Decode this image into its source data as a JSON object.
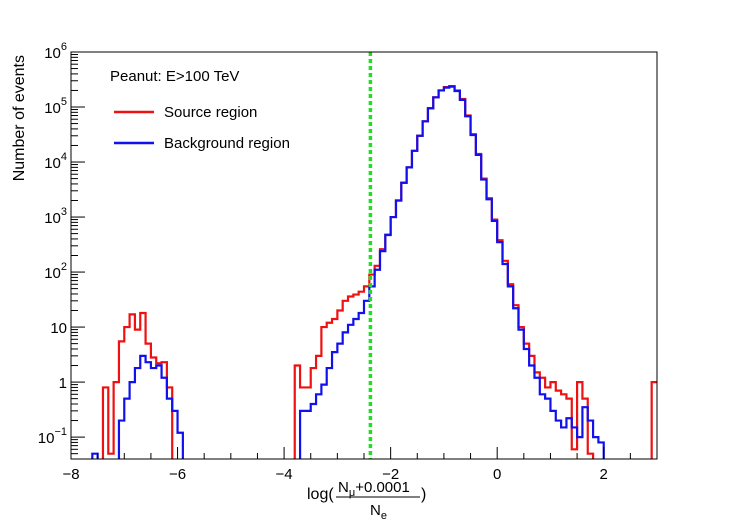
{
  "chart_data": {
    "type": "step",
    "ylabel": "Number of events",
    "xlabel": {
      "prefix": "log(",
      "numerator_main": "N",
      "numerator_sub": "μ",
      "numerator_rest": "+0.0001",
      "denominator_main": "N",
      "denominator_sub": "e",
      "suffix": ")"
    },
    "xlim": [
      -8,
      3
    ],
    "ylim": [
      0.04,
      1000000
    ],
    "yscale": "log",
    "x_ticks": [
      {
        "v": -8,
        "label": "−8"
      },
      {
        "v": -6,
        "label": "−6"
      },
      {
        "v": -4,
        "label": "−4"
      },
      {
        "v": -2,
        "label": "−2"
      },
      {
        "v": 0,
        "label": "0"
      },
      {
        "v": 2,
        "label": "2"
      }
    ],
    "y_ticks": [
      {
        "v": 0.1,
        "base": "10",
        "exp": "−1"
      },
      {
        "v": 1,
        "base": "1",
        "exp": ""
      },
      {
        "v": 10,
        "base": "10",
        "exp": ""
      },
      {
        "v": 100,
        "base": "10",
        "exp": "2"
      },
      {
        "v": 1000,
        "base": "10",
        "exp": "3"
      },
      {
        "v": 10000,
        "base": "10",
        "exp": "4"
      },
      {
        "v": 100000,
        "base": "10",
        "exp": "5"
      },
      {
        "v": 1000000,
        "base": "10",
        "exp": "6"
      }
    ],
    "legend": {
      "title": "Peanut: E>100 TeV",
      "placement": "top-left"
    },
    "cut_line": {
      "x": -2.38,
      "color": "#22dd22",
      "style": "dotted"
    },
    "series": [
      {
        "name": "Source region",
        "color": "#ee1111",
        "bins": [
          [
            -7.4,
            -7.3,
            0.8
          ],
          [
            -7.3,
            -7.2,
            0.05
          ],
          [
            -7.2,
            -7.1,
            1.0
          ],
          [
            -7.1,
            -7.0,
            5.5
          ],
          [
            -7.0,
            -6.9,
            10
          ],
          [
            -6.9,
            -6.8,
            17
          ],
          [
            -6.8,
            -6.7,
            9
          ],
          [
            -6.7,
            -6.6,
            18
          ],
          [
            -6.6,
            -6.5,
            5
          ],
          [
            -6.5,
            -6.4,
            2.8
          ],
          [
            -6.4,
            -6.3,
            2.2
          ],
          [
            -6.3,
            -6.2,
            2.3
          ],
          [
            -6.2,
            -6.1,
            0.8
          ],
          [
            -3.8,
            -3.7,
            2.0
          ],
          [
            -3.7,
            -3.6,
            0.8
          ],
          [
            -3.6,
            -3.5,
            0.8
          ],
          [
            -3.5,
            -3.4,
            1.8
          ],
          [
            -3.4,
            -3.3,
            3.0
          ],
          [
            -3.3,
            -3.2,
            10
          ],
          [
            -3.2,
            -3.1,
            12
          ],
          [
            -3.1,
            -3.0,
            14
          ],
          [
            -3.0,
            -2.9,
            20
          ],
          [
            -2.9,
            -2.8,
            30
          ],
          [
            -2.8,
            -2.7,
            36
          ],
          [
            -2.7,
            -2.6,
            39
          ],
          [
            -2.6,
            -2.5,
            44
          ],
          [
            -2.5,
            -2.4,
            55
          ],
          [
            -2.4,
            -2.3,
            90
          ],
          [
            -2.3,
            -2.2,
            130
          ],
          [
            -2.2,
            -2.1,
            260
          ],
          [
            -2.1,
            -2.0,
            480
          ],
          [
            -2.0,
            -1.9,
            1000
          ],
          [
            -1.9,
            -1.8,
            2000
          ],
          [
            -1.8,
            -1.7,
            4200
          ],
          [
            -1.7,
            -1.6,
            8000
          ],
          [
            -1.6,
            -1.5,
            16000
          ],
          [
            -1.5,
            -1.4,
            30000
          ],
          [
            -1.4,
            -1.3,
            55000
          ],
          [
            -1.3,
            -1.2,
            95000
          ],
          [
            -1.2,
            -1.1,
            150000
          ],
          [
            -1.1,
            -1.0,
            200000
          ],
          [
            -1.0,
            -0.9,
            230000
          ],
          [
            -0.9,
            -0.8,
            240000
          ],
          [
            -0.8,
            -0.7,
            200000
          ],
          [
            -0.7,
            -0.6,
            140000
          ],
          [
            -0.6,
            -0.5,
            70000
          ],
          [
            -0.5,
            -0.4,
            32000
          ],
          [
            -0.4,
            -0.3,
            14000
          ],
          [
            -0.3,
            -0.2,
            5000
          ],
          [
            -0.2,
            -0.1,
            2200
          ],
          [
            -0.1,
            0.0,
            900
          ],
          [
            0.0,
            0.1,
            380
          ],
          [
            0.1,
            0.2,
            160
          ],
          [
            0.2,
            0.3,
            60
          ],
          [
            0.3,
            0.4,
            25
          ],
          [
            0.4,
            0.5,
            10
          ],
          [
            0.5,
            0.6,
            5
          ],
          [
            0.6,
            0.7,
            3
          ],
          [
            0.7,
            0.8,
            1.5
          ],
          [
            0.8,
            0.9,
            1.2
          ],
          [
            0.9,
            1.0,
            0.8
          ],
          [
            1.0,
            1.1,
            1.0
          ],
          [
            1.1,
            1.2,
            0.7
          ],
          [
            1.2,
            1.3,
            0.6
          ],
          [
            1.3,
            1.4,
            0.5
          ],
          [
            1.4,
            1.5,
            0.06
          ],
          [
            1.5,
            1.6,
            1.0
          ],
          [
            1.6,
            1.7,
            0.5
          ],
          [
            1.7,
            1.8,
            0.05
          ],
          [
            2.9,
            3.0,
            1.0
          ]
        ]
      },
      {
        "name": "Background region",
        "color": "#1111ee",
        "bins": [
          [
            -7.6,
            -7.5,
            0.05
          ],
          [
            -7.1,
            -7.0,
            0.2
          ],
          [
            -7.0,
            -6.9,
            0.5
          ],
          [
            -6.9,
            -6.8,
            1.0
          ],
          [
            -6.8,
            -6.7,
            1.8
          ],
          [
            -6.7,
            -6.6,
            3.0
          ],
          [
            -6.6,
            -6.5,
            2.3
          ],
          [
            -6.5,
            -6.4,
            1.8
          ],
          [
            -6.4,
            -6.3,
            2.0
          ],
          [
            -6.3,
            -6.2,
            1.2
          ],
          [
            -6.2,
            -6.1,
            0.5
          ],
          [
            -6.1,
            -6.0,
            0.3
          ],
          [
            -6.0,
            -5.9,
            0.12
          ],
          [
            -3.7,
            -3.6,
            0.3
          ],
          [
            -3.6,
            -3.5,
            0.3
          ],
          [
            -3.5,
            -3.4,
            0.4
          ],
          [
            -3.4,
            -3.3,
            0.6
          ],
          [
            -3.3,
            -3.2,
            0.9
          ],
          [
            -3.2,
            -3.1,
            1.8
          ],
          [
            -3.1,
            -3.0,
            3.5
          ],
          [
            -3.0,
            -2.9,
            5
          ],
          [
            -2.9,
            -2.8,
            8
          ],
          [
            -2.8,
            -2.7,
            11
          ],
          [
            -2.7,
            -2.6,
            14
          ],
          [
            -2.6,
            -2.5,
            18
          ],
          [
            -2.5,
            -2.4,
            30
          ],
          [
            -2.4,
            -2.3,
            55
          ],
          [
            -2.3,
            -2.2,
            110
          ],
          [
            -2.2,
            -2.1,
            240
          ],
          [
            -2.1,
            -2.0,
            470
          ],
          [
            -2.0,
            -1.9,
            1000
          ],
          [
            -1.9,
            -1.8,
            2000
          ],
          [
            -1.8,
            -1.7,
            4200
          ],
          [
            -1.7,
            -1.6,
            8000
          ],
          [
            -1.6,
            -1.5,
            16000
          ],
          [
            -1.5,
            -1.4,
            30000
          ],
          [
            -1.4,
            -1.3,
            55000
          ],
          [
            -1.3,
            -1.2,
            95000
          ],
          [
            -1.2,
            -1.1,
            150000
          ],
          [
            -1.1,
            -1.0,
            200000
          ],
          [
            -1.0,
            -0.9,
            225000
          ],
          [
            -0.9,
            -0.8,
            235000
          ],
          [
            -0.8,
            -0.7,
            195000
          ],
          [
            -0.7,
            -0.6,
            135000
          ],
          [
            -0.6,
            -0.5,
            68000
          ],
          [
            -0.5,
            -0.4,
            31000
          ],
          [
            -0.4,
            -0.3,
            13500
          ],
          [
            -0.3,
            -0.2,
            4800
          ],
          [
            -0.2,
            -0.1,
            2100
          ],
          [
            -0.1,
            0.0,
            850
          ],
          [
            0.0,
            0.1,
            350
          ],
          [
            0.1,
            0.2,
            140
          ],
          [
            0.2,
            0.3,
            55
          ],
          [
            0.3,
            0.4,
            22
          ],
          [
            0.4,
            0.5,
            9
          ],
          [
            0.5,
            0.6,
            4
          ],
          [
            0.6,
            0.7,
            2
          ],
          [
            0.7,
            0.8,
            1.2
          ],
          [
            0.8,
            0.9,
            0.6
          ],
          [
            0.9,
            1.0,
            0.5
          ],
          [
            1.0,
            1.1,
            0.3
          ],
          [
            1.1,
            1.2,
            0.2
          ],
          [
            1.2,
            1.3,
            0.15
          ],
          [
            1.3,
            1.4,
            0.22
          ],
          [
            1.4,
            1.5,
            0.15
          ],
          [
            1.5,
            1.6,
            0.1
          ],
          [
            1.6,
            1.7,
            0.35
          ],
          [
            1.7,
            1.8,
            0.2
          ],
          [
            1.8,
            1.9,
            0.1
          ],
          [
            1.9,
            2.0,
            0.08
          ]
        ]
      }
    ]
  }
}
